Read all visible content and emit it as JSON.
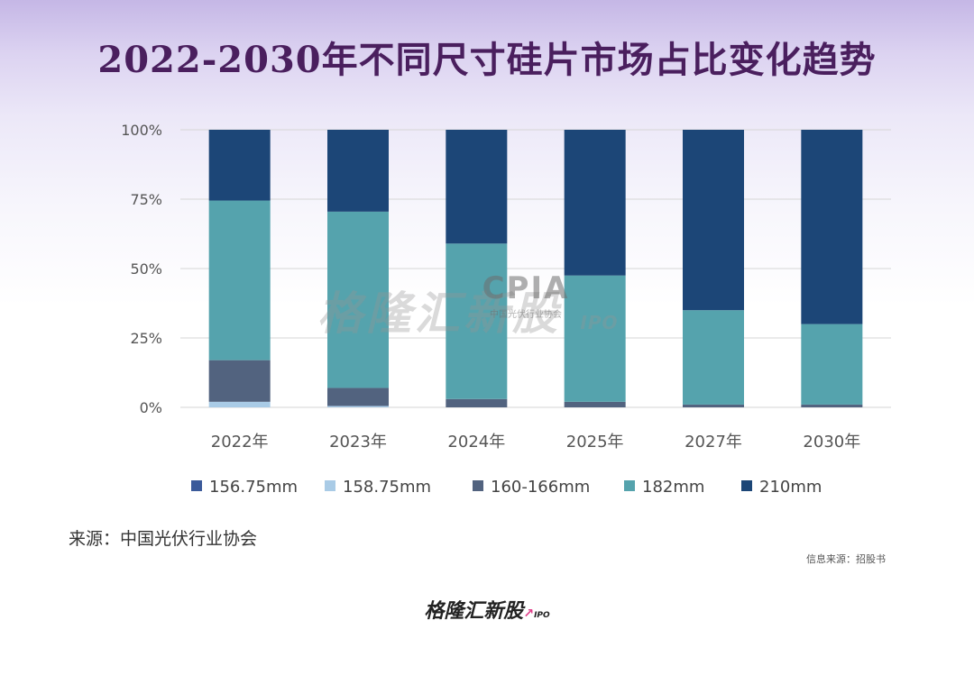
{
  "title": "2022-2030年不同尺寸硅片市场占比变化趋势",
  "source_note": "来源：中国光伏行业协会",
  "info_source": "信息来源：招股书",
  "watermark": {
    "text": "格隆汇新股",
    "ipo": "IPO"
  },
  "cpia_logo": {
    "mark": "CPIA",
    "name": "中国光伏行业协会"
  },
  "footer_logo": {
    "text": "格隆汇新股",
    "ipo": "IPO"
  },
  "colors": {
    "156.75mm": "#3b5a9a",
    "158.75mm": "#a9cbe6",
    "160-166mm": "#52637f",
    "182mm": "#55a3ad",
    "210mm": "#1c4677",
    "grid": "#d6d6d6",
    "tick_text": "#555555"
  },
  "chart_data": {
    "type": "bar",
    "stacked": true,
    "categories": [
      "2022年",
      "2023年",
      "2024年",
      "2025年",
      "2027年",
      "2030年"
    ],
    "series": [
      {
        "name": "156.75mm",
        "values": [
          0,
          0,
          0,
          0,
          0,
          0
        ]
      },
      {
        "name": "158.75mm",
        "values": [
          2,
          0.5,
          0,
          0,
          0,
          0
        ]
      },
      {
        "name": "160-166mm",
        "values": [
          15,
          6.5,
          3,
          2,
          1,
          1
        ]
      },
      {
        "name": "182mm",
        "values": [
          57.5,
          63.5,
          56,
          45.5,
          34,
          29
        ]
      },
      {
        "name": "210mm",
        "values": [
          25.5,
          29.5,
          41,
          52.5,
          65,
          70
        ]
      }
    ],
    "yticks": [
      "0%",
      "25%",
      "50%",
      "75%",
      "100%"
    ],
    "ylim": [
      0,
      100
    ],
    "grid": true,
    "legend_position": "bottom"
  }
}
